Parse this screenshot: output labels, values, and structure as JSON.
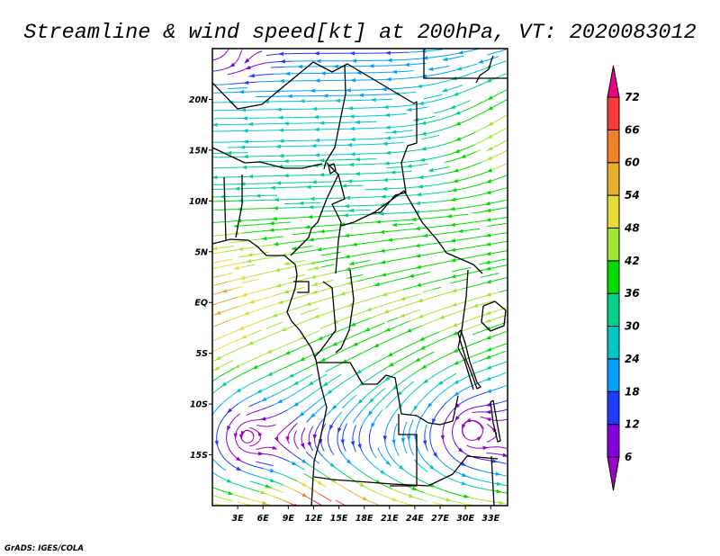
{
  "title": "Streamline & wind speed[kt] at 200hPa, VT: 2020083012",
  "footer": "GrADS: IGES/COLA",
  "map": {
    "lon_range": [
      0,
      35
    ],
    "lat_range": [
      -20,
      25
    ],
    "lat_ticks": [
      {
        "value": 20,
        "label": "20N"
      },
      {
        "value": 15,
        "label": "15N"
      },
      {
        "value": 10,
        "label": "10N"
      },
      {
        "value": 5,
        "label": "5N"
      },
      {
        "value": 0,
        "label": "EQ"
      },
      {
        "value": -5,
        "label": "5S"
      },
      {
        "value": -10,
        "label": "10S"
      },
      {
        "value": -15,
        "label": "15S"
      }
    ],
    "lon_ticks": [
      {
        "value": 3,
        "label": "3E"
      },
      {
        "value": 6,
        "label": "6E"
      },
      {
        "value": 9,
        "label": "9E"
      },
      {
        "value": 12,
        "label": "12E"
      },
      {
        "value": 15,
        "label": "15E"
      },
      {
        "value": 18,
        "label": "18E"
      },
      {
        "value": 21,
        "label": "21E"
      },
      {
        "value": 24,
        "label": "24E"
      },
      {
        "value": 27,
        "label": "27E"
      },
      {
        "value": 30,
        "label": "30E"
      },
      {
        "value": 33,
        "label": "33E"
      }
    ]
  },
  "colorbar": {
    "levels": [
      "6",
      "12",
      "18",
      "24",
      "30",
      "36",
      "42",
      "48",
      "54",
      "60",
      "66",
      "72"
    ],
    "below_color": "#a000c8",
    "colors": [
      "#8200dc",
      "#1e3cff",
      "#00a0ff",
      "#00c8c8",
      "#00d28c",
      "#00dc00",
      "#a0e632",
      "#e6dc32",
      "#e6af2d",
      "#f08228",
      "#fa3c3c"
    ],
    "above_color": "#f00082"
  }
}
